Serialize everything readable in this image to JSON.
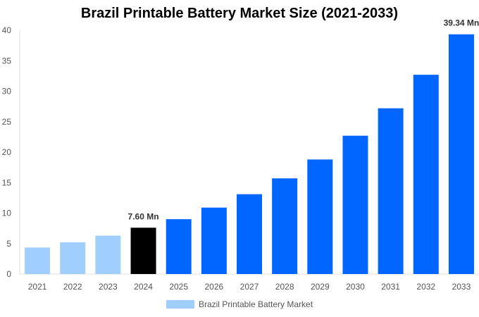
{
  "chart_data": {
    "type": "bar",
    "title": "Brazil Printable Battery Market Size (2021-2033)",
    "categories": [
      "2021",
      "2022",
      "2023",
      "2024",
      "2025",
      "2026",
      "2027",
      "2028",
      "2029",
      "2030",
      "2031",
      "2032",
      "2033"
    ],
    "series": [
      {
        "name": "Brazil Printable Battery Market",
        "values": [
          4.35,
          5.2,
          6.3,
          7.6,
          9.0,
          10.9,
          13.1,
          15.7,
          18.8,
          22.7,
          27.2,
          32.7,
          39.34
        ]
      }
    ],
    "data_labels": {
      "3": "7.60 Mn",
      "12": "39.34 Mn"
    },
    "ylim": [
      0,
      40
    ],
    "yticks": [
      0,
      5,
      10,
      15,
      20,
      25,
      30,
      35,
      40
    ],
    "xlabel": "",
    "ylabel": "",
    "grid": false,
    "legend_position": "bottom",
    "colors": {
      "historical": "#a0cfff",
      "base_year": "#000000",
      "forecast": "#0066ff",
      "legend": "#a0cfff"
    }
  }
}
